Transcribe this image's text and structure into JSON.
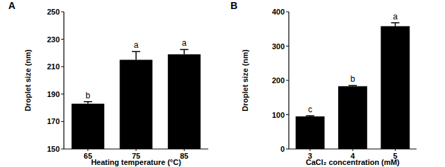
{
  "chart_data": [
    {
      "type": "bar",
      "title": "A",
      "x_label": "Heating temperature (°C)",
      "y_label": "Droplet size (nm)",
      "categories": [
        "65",
        "75",
        "85"
      ],
      "values": [
        183,
        215,
        219
      ],
      "errors": [
        1.5,
        6,
        3.5
      ],
      "annotations": [
        "b",
        "a",
        "a"
      ],
      "color": "#000000",
      "ylim": [
        150,
        250
      ],
      "yticks": [
        150,
        170,
        190,
        210,
        230,
        250
      ],
      "grid": false
    },
    {
      "type": "bar",
      "title": "B",
      "x_label": "CaCl₂ concentration (mM)",
      "y_label": "Droplet size (nm)",
      "categories": [
        "3",
        "4",
        "5"
      ],
      "values": [
        95,
        183,
        358
      ],
      "errors": [
        2,
        2,
        10
      ],
      "annotations": [
        "c",
        "b",
        "a"
      ],
      "color": "#000000",
      "ylim": [
        0,
        400
      ],
      "yticks": [
        0,
        100,
        200,
        300,
        400
      ],
      "grid": false
    }
  ]
}
